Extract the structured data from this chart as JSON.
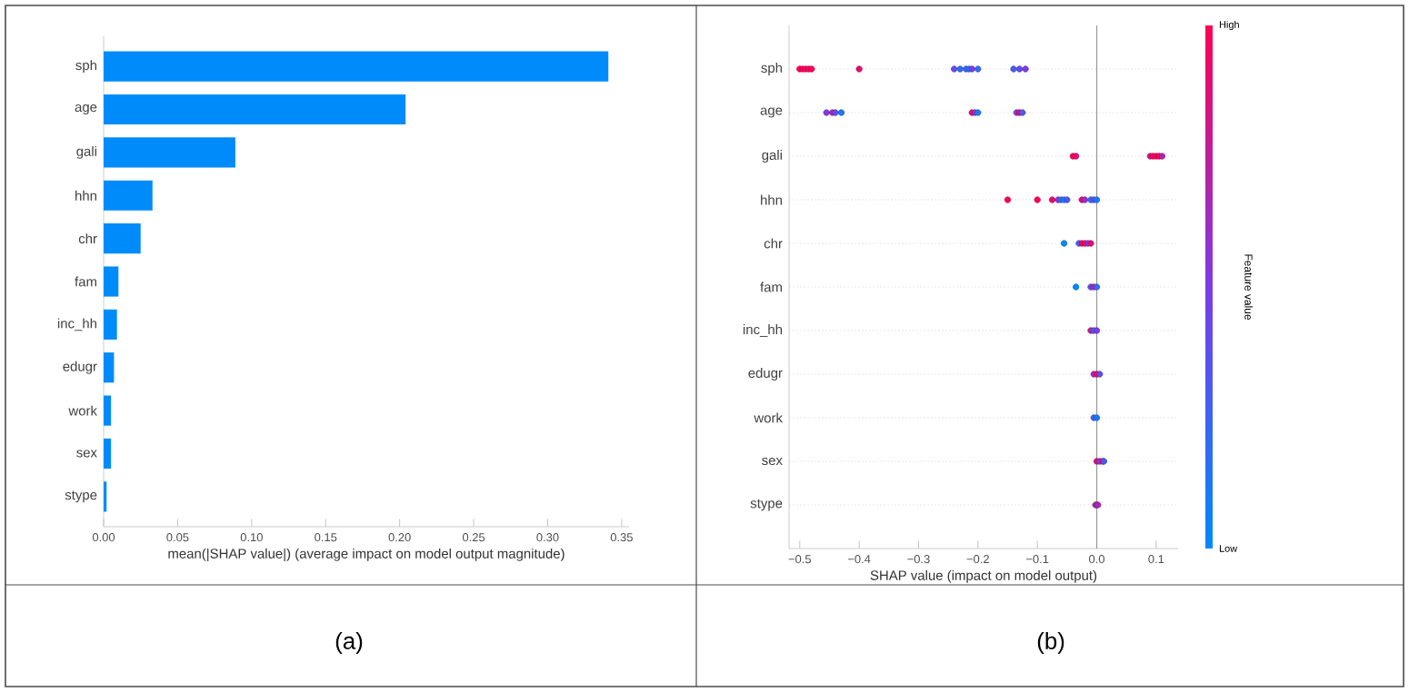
{
  "chart_data": [
    {
      "type": "bar",
      "orientation": "horizontal",
      "categories": [
        "sph",
        "age",
        "gali",
        "hhn",
        "chr",
        "fam",
        "inc_hh",
        "edugr",
        "work",
        "sex",
        "stype"
      ],
      "values": [
        0.341,
        0.204,
        0.089,
        0.033,
        0.025,
        0.01,
        0.009,
        0.007,
        0.005,
        0.005,
        0.002
      ],
      "color": "#008bfb",
      "xlim": [
        0,
        0.355
      ],
      "xticks": [
        {
          "value": 0,
          "label": "0.00"
        },
        {
          "value": 0.05,
          "label": "0.05"
        },
        {
          "value": 0.1,
          "label": "0.10"
        },
        {
          "value": 0.15,
          "label": "0.15"
        },
        {
          "value": 0.2,
          "label": "0.20"
        },
        {
          "value": 0.25,
          "label": "0.25"
        },
        {
          "value": 0.3,
          "label": "0.30"
        },
        {
          "value": 0.35,
          "label": "0.35"
        }
      ],
      "xlabel": "mean(|SHAP value|) (average impact on model output magnitude)",
      "annotations": [
        "(a)"
      ]
    },
    {
      "type": "scatter",
      "orientation": "horizontal",
      "categories": [
        "sph",
        "age",
        "gali",
        "hhn",
        "chr",
        "fam",
        "inc_hh",
        "edugr",
        "work",
        "sex",
        "stype"
      ],
      "series": [
        {
          "x": [
            "sph",
            "sph",
            "sph",
            "sph",
            "sph",
            "sph",
            "sph",
            "sph",
            "sph",
            "sph",
            "sph",
            "sph",
            "sph",
            "sph",
            "sph",
            "age",
            "age",
            "age",
            "age",
            "age",
            "age",
            "age",
            "age",
            "age",
            "age",
            "gali",
            "gali",
            "gali",
            "gali",
            "gali",
            "gali",
            "gali",
            "hhn",
            "hhn",
            "hhn",
            "hhn",
            "hhn",
            "hhn",
            "hhn",
            "hhn",
            "hhn",
            "hhn",
            "hhn",
            "hhn",
            "chr",
            "chr",
            "chr",
            "chr",
            "chr",
            "chr",
            "fam",
            "fam",
            "fam",
            "fam",
            "inc_hh",
            "inc_hh",
            "inc_hh",
            "edugr",
            "edugr",
            "edugr",
            "work",
            "work",
            "sex",
            "sex",
            "sex",
            "sex",
            "stype",
            "stype",
            "stype"
          ],
          "values": [
            -0.5,
            -0.495,
            -0.49,
            -0.485,
            -0.48,
            -0.4,
            -0.24,
            -0.23,
            -0.22,
            -0.215,
            -0.21,
            -0.2,
            -0.14,
            -0.13,
            -0.12,
            -0.455,
            -0.445,
            -0.44,
            -0.43,
            -0.21,
            -0.205,
            -0.2,
            -0.135,
            -0.13,
            -0.125,
            -0.04,
            -0.035,
            0.09,
            0.095,
            0.1,
            0.105,
            0.11,
            -0.15,
            -0.1,
            -0.075,
            -0.065,
            -0.06,
            -0.055,
            -0.05,
            -0.025,
            -0.02,
            -0.01,
            -0.005,
            0.0,
            -0.055,
            -0.03,
            -0.025,
            -0.02,
            -0.015,
            -0.01,
            -0.035,
            -0.01,
            -0.005,
            0.0,
            -0.01,
            -0.005,
            0.0,
            -0.005,
            0.0,
            0.005,
            -0.005,
            0.0,
            0.0,
            0.005,
            0.01,
            0.012,
            -0.002,
            0.0,
            0.002
          ],
          "cvalues": [
            1,
            0.95,
            1,
            0.9,
            1,
            0.9,
            0.4,
            0.2,
            0.3,
            0.1,
            0.5,
            0.2,
            0.3,
            0.4,
            0.5,
            0.5,
            0.7,
            0.4,
            0.1,
            0.9,
            0.6,
            0.1,
            0.5,
            0.9,
            0.3,
            1,
            0.9,
            0.8,
            1,
            0.9,
            1,
            0.7,
            1,
            1,
            0.9,
            0.6,
            0.2,
            0.1,
            0.3,
            0.9,
            0.6,
            0.2,
            0.4,
            0.1,
            0,
            0.2,
            0.9,
            1,
            0.5,
            0.9,
            0,
            0.4,
            0.7,
            0.2,
            0.8,
            0.3,
            0.5,
            0.6,
            1,
            0.4,
            0.3,
            0.1,
            0.9,
            0.5,
            1,
            0.3,
            0.9,
            0.3,
            0.7
          ]
        }
      ],
      "marker": "circle",
      "grid": "y",
      "xlim": [
        -0.518,
        0.137
      ],
      "xticks": [
        {
          "value": -0.5,
          "label": "−0.5"
        },
        {
          "value": -0.4,
          "label": "−0.4"
        },
        {
          "value": -0.3,
          "label": "−0.3"
        },
        {
          "value": -0.2,
          "label": "−0.2"
        },
        {
          "value": -0.1,
          "label": "−0.1"
        },
        {
          "value": 0,
          "label": "0.0"
        },
        0.1
      ],
      "ref_lines": [
        {
          "axis": "x",
          "value": 0,
          "color": "#999999"
        }
      ],
      "xlabel": "SHAP value (impact on model output)",
      "clabel": "Feature value",
      "clim": [
        0,
        1
      ],
      "cticks": [
        {
          "value": 0,
          "label": "Low"
        },
        {
          "value": 1,
          "label": "High"
        }
      ],
      "annotations": [
        "(b)"
      ]
    }
  ]
}
